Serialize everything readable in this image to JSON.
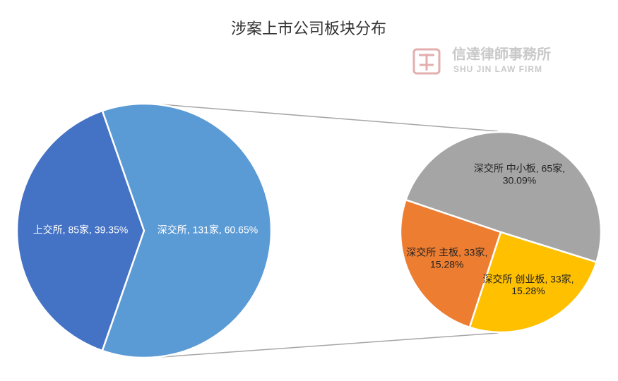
{
  "chart_data": [
    {
      "type": "pie",
      "title": "涉案上市公司板块分布",
      "values": [
        85,
        131
      ],
      "value_labels": [
        "上交所, 85家, 39.35%",
        "深交所, 131家, 60.65%"
      ],
      "colors": [
        "#4472c4",
        "#5b9bd5"
      ]
    },
    {
      "type": "pie",
      "values": [
        65,
        33,
        33
      ],
      "value_labels": [
        "深交所 中小板, 65家,\n30.09%",
        "深交所 主板, 33家,\n15.28%",
        "深交所 创业板, 33家,\n15.28%"
      ],
      "colors": [
        "#a5a5a5",
        "#ed7d31",
        "#ffc000"
      ]
    }
  ],
  "watermark": {
    "name": "信達律師事務所",
    "name_en": "SHU JIN LAW FIRM"
  }
}
